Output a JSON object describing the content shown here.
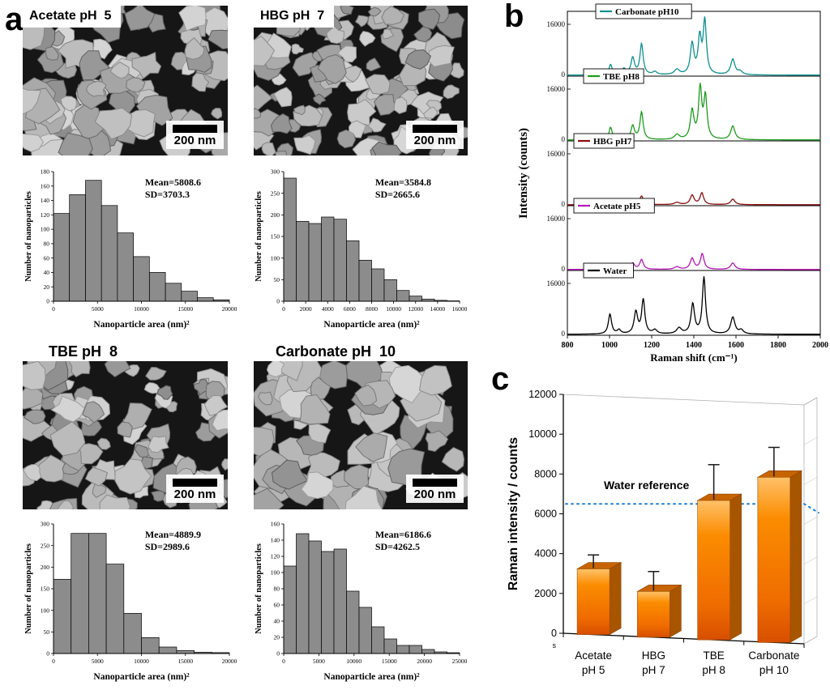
{
  "panels": {
    "a": "a",
    "b": "b",
    "c": "c"
  },
  "sem_images": [
    {
      "title": "Acetate pH  5",
      "scale_bar": "200 nm"
    },
    {
      "title": "HBG pH  7",
      "scale_bar": "200 nm"
    },
    {
      "title": "TBE pH  8",
      "scale_bar": "200 nm"
    },
    {
      "title": "Carbonate pH  10",
      "scale_bar": "200 nm"
    }
  ],
  "chart_data": [
    {
      "type": "bar",
      "id": "hist-acetate",
      "mean_label": "Mean=5808.6",
      "sd_label": "SD=3703.3",
      "xlabel": "Nanoparticle area (nm)²",
      "ylabel": "Number of nanoparticles",
      "xlim": [
        0,
        20000
      ],
      "ylim": [
        0,
        180
      ],
      "xticks": [
        0,
        5000,
        10000,
        15000,
        20000
      ],
      "yticks": [
        0,
        20,
        40,
        60,
        80,
        100,
        120,
        140,
        160,
        180
      ],
      "bin_width": 1818.2,
      "values": [
        122,
        148,
        168,
        133,
        95,
        62,
        40,
        25,
        14,
        5,
        2
      ]
    },
    {
      "type": "bar",
      "id": "hist-hbg",
      "mean_label": "Mean=3584.8",
      "sd_label": "SD=2665.6",
      "xlabel": "Nanoparticle area (nm)²",
      "ylabel": "Number of nanoparticles",
      "xlim": [
        0,
        16000
      ],
      "ylim": [
        0,
        300
      ],
      "xticks": [
        0,
        2000,
        4000,
        6000,
        8000,
        10000,
        12000,
        14000,
        16000
      ],
      "yticks": [
        0,
        50,
        100,
        150,
        200,
        250,
        300
      ],
      "bin_width": 1142.9,
      "values": [
        285,
        185,
        180,
        195,
        190,
        140,
        95,
        75,
        50,
        25,
        12,
        5,
        2,
        1
      ]
    },
    {
      "type": "bar",
      "id": "hist-tbe",
      "mean_label": "Mean=4889.9",
      "sd_label": "SD=2989.6",
      "xlabel": "Nanoparticle area (nm)²",
      "ylabel": "Number of nanoparticles",
      "xlim": [
        0,
        20000
      ],
      "ylim": [
        0,
        300
      ],
      "xticks": [
        0,
        5000,
        10000,
        15000,
        20000
      ],
      "yticks": [
        0,
        50,
        100,
        150,
        200,
        250,
        300
      ],
      "bin_width": 2000,
      "values": [
        172,
        278,
        278,
        207,
        93,
        37,
        15,
        7,
        3,
        2
      ]
    },
    {
      "type": "bar",
      "id": "hist-carbonate",
      "mean_label": "Mean=6186.6",
      "sd_label": "SD=4262.5",
      "xlabel": "Nanoparticle area (nm)²",
      "ylabel": "Number of nanoparticles",
      "xlim": [
        0,
        25000
      ],
      "ylim": [
        0,
        160
      ],
      "xticks": [
        0,
        5000,
        10000,
        15000,
        20000,
        25000
      ],
      "yticks": [
        0,
        20,
        40,
        60,
        80,
        100,
        120,
        140,
        160
      ],
      "bin_width": 1785.7,
      "values": [
        108,
        148,
        139,
        126,
        129,
        77,
        57,
        33,
        18,
        10,
        10,
        5,
        2,
        1
      ]
    },
    {
      "type": "line",
      "id": "raman-spectra",
      "xlabel": "Raman shift (cm⁻¹)",
      "ylabel": "Intensity (counts)",
      "xlim": [
        800,
        2000
      ],
      "ylim": [
        0,
        20000
      ],
      "xticks": [
        800,
        1000,
        1200,
        1400,
        1600,
        1800,
        2000
      ],
      "yticks": [
        0,
        16000
      ],
      "baseline": 300,
      "series": [
        {
          "name": "Carbonate pH10",
          "color": "#0e8f8f",
          "peaks": [
            [
              935,
              600,
              10
            ],
            [
              1005,
              3200,
              9
            ],
            [
              1068,
              1800,
              10
            ],
            [
              1110,
              5200,
              10
            ],
            [
              1152,
              9500,
              9
            ],
            [
              1215,
              900,
              12
            ],
            [
              1320,
              1600,
              14
            ],
            [
              1392,
              9500,
              10
            ],
            [
              1428,
              11000,
              9
            ],
            [
              1452,
              16500,
              9
            ],
            [
              1585,
              4800,
              12
            ],
            [
              1620,
              1000,
              12
            ]
          ]
        },
        {
          "name": "TBE pH8",
          "color": "#1e9b1e",
          "peaks": [
            [
              935,
              500,
              10
            ],
            [
              1005,
              3800,
              9
            ],
            [
              1068,
              1500,
              10
            ],
            [
              1110,
              4200,
              10
            ],
            [
              1152,
              8500,
              9
            ],
            [
              1320,
              1500,
              14
            ],
            [
              1392,
              8800,
              10
            ],
            [
              1430,
              15500,
              9
            ],
            [
              1455,
              13000,
              9
            ],
            [
              1585,
              4200,
              12
            ]
          ]
        },
        {
          "name": "HBG pH7",
          "color": "#8a0f0f",
          "peaks": [
            [
              1005,
              1200,
              10
            ],
            [
              1068,
              700,
              10
            ],
            [
              1110,
              1600,
              10
            ],
            [
              1152,
              2600,
              10
            ],
            [
              1320,
              700,
              14
            ],
            [
              1392,
              2900,
              11
            ],
            [
              1438,
              3600,
              10
            ],
            [
              1585,
              1700,
              12
            ]
          ]
        },
        {
          "name": "Acetate pH5",
          "color": "#b515b5",
          "peaks": [
            [
              1005,
              1400,
              10
            ],
            [
              1068,
              800,
              10
            ],
            [
              1110,
              1900,
              10
            ],
            [
              1152,
              3000,
              10
            ],
            [
              1320,
              800,
              14
            ],
            [
              1392,
              3400,
              11
            ],
            [
              1440,
              4800,
              10
            ],
            [
              1585,
              2000,
              12
            ]
          ]
        },
        {
          "name": "Water",
          "color": "#000000",
          "peaks": [
            [
              1002,
              6200,
              9
            ],
            [
              1045,
              1200,
              10
            ],
            [
              1125,
              6800,
              10
            ],
            [
              1160,
              10500,
              9
            ],
            [
              1215,
              1200,
              12
            ],
            [
              1330,
              1800,
              14
            ],
            [
              1395,
              9200,
              10
            ],
            [
              1448,
              17500,
              9
            ],
            [
              1585,
              5200,
              12
            ],
            [
              1625,
              1200,
              12
            ]
          ]
        }
      ]
    },
    {
      "type": "bar",
      "subtype": "bar3d",
      "id": "raman-intensity",
      "ylabel": "Raman intensity /  counts",
      "ylim": [
        0,
        12000
      ],
      "yticks": [
        0,
        2000,
        4000,
        6000,
        8000,
        10000,
        12000
      ],
      "categories": [
        [
          "Acetate",
          "pH  5"
        ],
        [
          "HBG",
          "pH  7"
        ],
        [
          "TBE",
          "pH  8"
        ],
        [
          "Carbonate",
          "pH  10"
        ]
      ],
      "values": [
        3300,
        2300,
        7000,
        8300
      ],
      "errors": [
        700,
        1000,
        1800,
        1500
      ],
      "reference": {
        "label": "Water reference",
        "value": 6500,
        "color": "#1a7fd6"
      },
      "bar_color": "#f57f00",
      "corner_label": "s"
    }
  ]
}
